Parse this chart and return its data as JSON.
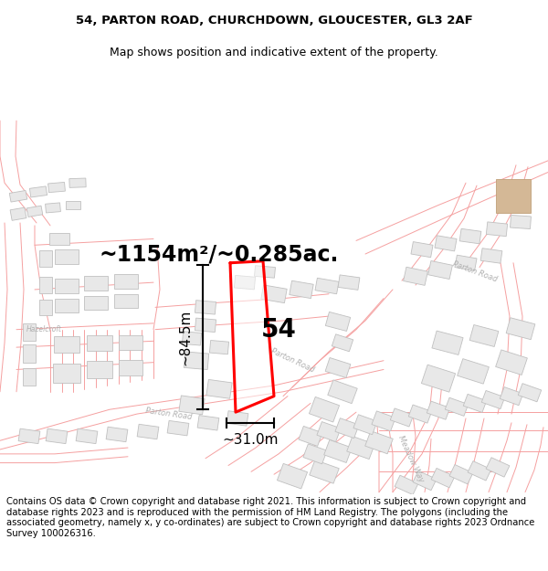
{
  "title_line1": "54, PARTON ROAD, CHURCHDOWN, GLOUCESTER, GL3 2AF",
  "title_line2": "Map shows position and indicative extent of the property.",
  "footer_text": "Contains OS data © Crown copyright and database right 2021. This information is subject to Crown copyright and database rights 2023 and is reproduced with the permission of HM Land Registry. The polygons (including the associated geometry, namely x, y co-ordinates) are subject to Crown copyright and database rights 2023 Ordnance Survey 100026316.",
  "area_label": "~1154m²/~0.285ac.",
  "number_label": "54",
  "dim_height": "~84.5m",
  "dim_width": "~31.0m",
  "bg_color": "#ffffff",
  "map_bg": "#ffffff",
  "boundary_color": "#f5a0a0",
  "building_face": "#e8e8e8",
  "building_edge": "#c0c0c0",
  "road_label_color": "#b0b0b0",
  "highlight_color": "#ff0000",
  "title_fontsize": 9.5,
  "footer_fontsize": 7.2,
  "area_fontsize": 17,
  "number_fontsize": 20,
  "dim_fontsize": 11,
  "road_label_fontsize": 6
}
